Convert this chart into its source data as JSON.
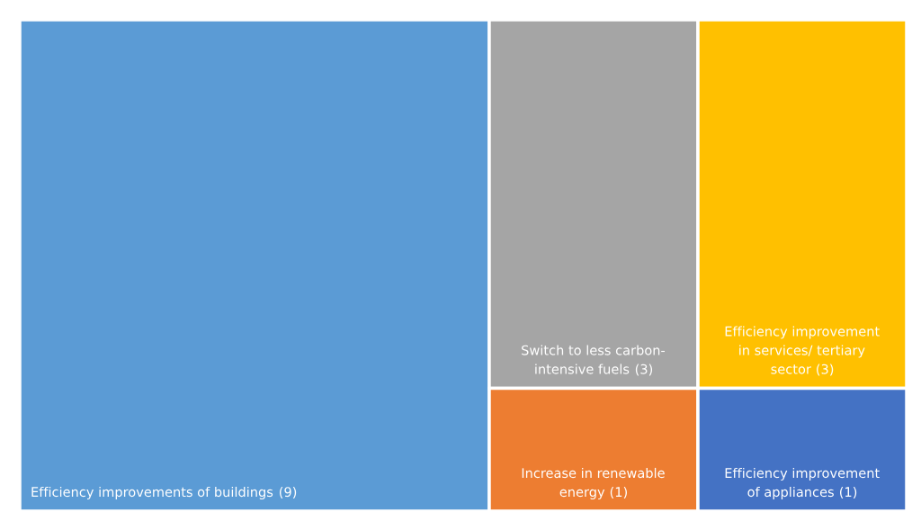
{
  "chart_data": {
    "type": "other",
    "categories": [
      "Efficiency improvements of buildings",
      "Switch to less carbon-intensive fuels",
      "Efficiency improvement in services/ tertiary sector",
      "Increase in renewable energy",
      "Efficiency improvement of appliances"
    ],
    "values": [
      9,
      3,
      3,
      1,
      1
    ],
    "colors": [
      "#5b9bd5",
      "#a5a5a5",
      "#ffc000",
      "#ed7d31",
      "#4472c4"
    ],
    "value_labels": [
      "(9)",
      "(3)",
      "(3)",
      "(1)",
      "(1)"
    ]
  }
}
